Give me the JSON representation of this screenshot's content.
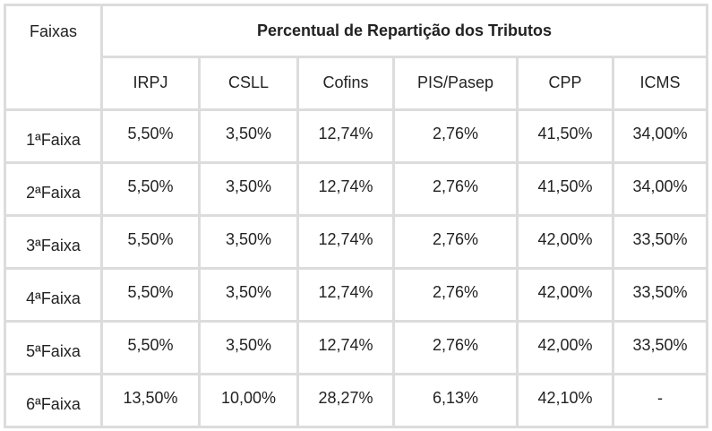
{
  "table": {
    "corner_label": "Faixas",
    "title": "Percentual de Repartição dos Tributos",
    "columns": [
      "IRPJ",
      "CSLL",
      "Cofins",
      "PIS/Pasep",
      "CPP",
      "ICMS"
    ],
    "rows": [
      {
        "faixa": "1ªFaixa",
        "values": [
          "5,50%",
          "3,50%",
          "12,74%",
          "2,76%",
          "41,50%",
          "34,00%"
        ]
      },
      {
        "faixa": "2ªFaixa",
        "values": [
          "5,50%",
          "3,50%",
          "12,74%",
          "2,76%",
          "41,50%",
          "34,00%"
        ]
      },
      {
        "faixa": "3ªFaixa",
        "values": [
          "5,50%",
          "3,50%",
          "12,74%",
          "2,76%",
          "42,00%",
          "33,50%"
        ]
      },
      {
        "faixa": "4ªFaixa",
        "values": [
          "5,50%",
          "3,50%",
          "12,74%",
          "2,76%",
          "42,00%",
          "33,50%"
        ]
      },
      {
        "faixa": "5ªFaixa",
        "values": [
          "5,50%",
          "3,50%",
          "12,74%",
          "2,76%",
          "42,00%",
          "33,50%"
        ]
      },
      {
        "faixa": "6ªFaixa",
        "values": [
          "13,50%",
          "10,00%",
          "28,27%",
          "6,13%",
          "42,10%",
          "-"
        ]
      }
    ]
  }
}
